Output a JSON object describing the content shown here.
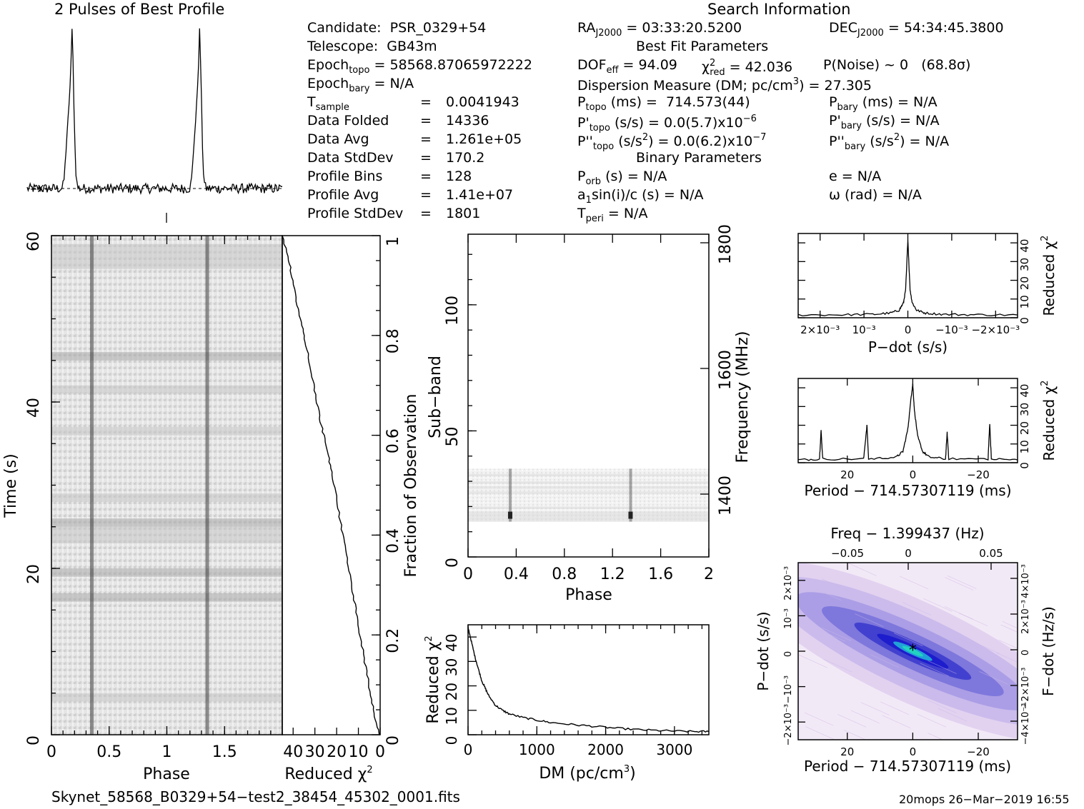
{
  "profile_title": "2 Pulses of Best Profile",
  "search_title": "Search Information",
  "candidate": {
    "label": "Candidate:",
    "value": "PSR_0329+54"
  },
  "telescope": {
    "label": "Telescope:",
    "value": "GB43m"
  },
  "epoch_topo": {
    "label": "Epoch",
    "sub": "topo",
    "value": "= 58568.87065972222"
  },
  "epoch_bary": {
    "label": "Epoch",
    "sub": "bary",
    "value": "= N/A"
  },
  "stats": [
    {
      "label": "T",
      "sub": "sample",
      "eq": "=",
      "value": "0.0041943"
    },
    {
      "label": "Data Folded",
      "sub": "",
      "eq": "=",
      "value": "14336"
    },
    {
      "label": "Data Avg",
      "sub": "",
      "eq": "=",
      "value": "1.261e+05"
    },
    {
      "label": "Data StdDev",
      "sub": "",
      "eq": "=",
      "value": "170.2"
    },
    {
      "label": "Profile Bins",
      "sub": "",
      "eq": "=",
      "value": "128"
    },
    {
      "label": "Profile Avg",
      "sub": "",
      "eq": "=",
      "value": "1.41e+07"
    },
    {
      "label": "Profile StdDev",
      "sub": "",
      "eq": "=",
      "value": "1801"
    }
  ],
  "ra": {
    "label": "RA",
    "sub": "J2000",
    "value": " = 03:33:20.5200"
  },
  "dec": {
    "label": "DEC",
    "sub": "J2000",
    "value": " = 54:34:45.3800"
  },
  "best_fit_title": "Best Fit Parameters",
  "dof": {
    "label": "DOF",
    "sub": "eff",
    "value": " = 94.09"
  },
  "chi": {
    "label": "χ",
    "sup": "2",
    "sub": "red",
    "value": " = 42.036"
  },
  "pnoise": "P(Noise) ~ 0   (68.8σ)",
  "dm_line": {
    "text": "Dispersion Measure (DM; pc/cm",
    "sup": "3",
    "tail": ") = 27.305"
  },
  "ptopo": {
    "label": "P",
    "sub": "topo",
    "value": " (ms) =  714.573(44)"
  },
  "pbary": {
    "label": "P",
    "sub": "bary",
    "value": " (ms) = N/A"
  },
  "pdtopo": {
    "label": "P'",
    "sub": "topo",
    "value": " (s/s) = 0.0(5.7)x10",
    "sup": "−6"
  },
  "pdbary": {
    "label": "P'",
    "sub": "bary",
    "value": " (s/s) = N/A"
  },
  "pddtopo": {
    "label": "P''",
    "sub": "topo",
    "value": " (s/s",
    "sup": "2",
    "tail": ") = 0.0(6.2)x10",
    "sup2": "−7"
  },
  "pddbary": {
    "label": "P''",
    "sub": "bary",
    "value": " (s/s",
    "sup": "2",
    "tail": ") = N/A"
  },
  "binary_title": "Binary Parameters",
  "porb": {
    "label": "P",
    "sub": "orb",
    "value": " (s) = N/A"
  },
  "ecc": "e = N/A",
  "a1": {
    "label": "a",
    "sub": "1",
    "value": "sin(i)/c (s) = N/A"
  },
  "omega": "ω (rad) = N/A",
  "tperi": {
    "label": "T",
    "sub": "peri",
    "value": " = N/A"
  },
  "footer_file": "Skynet_58568_B0329+54−test2_38454_45302_0001.fits",
  "footer_stamp": "20mops 26−Mar−2019 16:55",
  "colors": {
    "ink": "#000000",
    "pdot_low": "#ffffff",
    "pdot_mid": "#b4b4ee",
    "pdot_high": "#1a1acc",
    "pdot_peak": "#22d3c0"
  },
  "chart_data": [
    {
      "id": "profile",
      "type": "line",
      "title": "2 Pulses of Best Profile",
      "x": "phase 0–2",
      "peaks_at_phase": [
        0.35,
        1.35
      ],
      "baseline_marker": "−X−"
    },
    {
      "id": "time_phase",
      "type": "heatmap",
      "xlabel": "Phase",
      "ylabel": "Time (s)",
      "xlim": [
        0,
        2
      ],
      "ylim": [
        0,
        60
      ],
      "xticks": [
        "0",
        "0.5",
        "1",
        "1.5"
      ],
      "yticks": [
        "0",
        "20",
        "40",
        "60"
      ],
      "pulse_phase": [
        0.35,
        1.35
      ]
    },
    {
      "id": "chi_vs_time",
      "type": "line",
      "xlabel": "Reduced χ",
      "xlabel_sup": "2",
      "ylabel": "Fraction of Observation",
      "xlim": [
        45,
        0
      ],
      "ylim": [
        0,
        1
      ],
      "xticks": [
        "40",
        "30",
        "20",
        "10",
        "0"
      ],
      "yticks": [
        "0",
        "0.2",
        "0.4",
        "0.6",
        "0.8",
        "1"
      ],
      "x": [
        0,
        2,
        4,
        6,
        8,
        10,
        12,
        14,
        16,
        18,
        20,
        22,
        24,
        26,
        28,
        30,
        32,
        34,
        36,
        38,
        40,
        42,
        45
      ],
      "y": [
        0,
        0.03,
        0.07,
        0.12,
        0.17,
        0.22,
        0.27,
        0.32,
        0.37,
        0.42,
        0.47,
        0.52,
        0.56,
        0.6,
        0.64,
        0.69,
        0.73,
        0.78,
        0.82,
        0.86,
        0.91,
        0.95,
        1.0
      ]
    },
    {
      "id": "subband",
      "type": "heatmap",
      "xlabel": "Phase",
      "ylabel": "Sub−band",
      "ylabel_right": "Frequency (MHz)",
      "xlim": [
        0,
        2
      ],
      "ylim": [
        0,
        128
      ],
      "xticks": [
        "0",
        "0.4",
        "0.8",
        "1.2",
        "1.6",
        "2"
      ],
      "yticks": [
        "0",
        "50",
        "100"
      ],
      "right_ticks": [
        "1400",
        "1600",
        "1800"
      ],
      "data_subband_range": [
        14,
        35
      ],
      "pulse_phase": [
        0.35,
        1.35
      ]
    },
    {
      "id": "dm_curve",
      "type": "line",
      "xlabel": "DM (pc/cm",
      "xlabel_sup": "3",
      "ylabel": "Reduced χ",
      "ylabel_sup": "2",
      "xlim": [
        0,
        3500
      ],
      "ylim": [
        0,
        45
      ],
      "xticks": [
        "0",
        "1000",
        "2000",
        "3000"
      ],
      "yticks": [
        "0",
        "10",
        "20",
        "30",
        "40"
      ],
      "x": [
        0,
        50,
        100,
        150,
        200,
        250,
        300,
        400,
        500,
        600,
        800,
        1000,
        1200,
        1500,
        1800,
        2100,
        2400,
        2700,
        3000,
        3300,
        3500
      ],
      "y": [
        44,
        38,
        32,
        27,
        22,
        19,
        16,
        12,
        10,
        8.5,
        7,
        6,
        5,
        4.2,
        3.5,
        2.8,
        2.2,
        1.8,
        1.5,
        1.3,
        1.3
      ]
    },
    {
      "id": "pdot_curve",
      "type": "line",
      "xlabel": "P−dot (s/s)",
      "ylabel": "Reduced χ",
      "ylabel_sup": "2",
      "xlim": [
        0.0025,
        -0.0025
      ],
      "ylim": [
        0,
        45
      ],
      "xticks": [
        "2×10⁻³",
        "10⁻³",
        "0",
        "−10⁻³",
        "−2×10⁻³"
      ],
      "yticks": [
        "0",
        "10",
        "20",
        "30",
        "40"
      ],
      "x": [
        0.0025,
        0.0015,
        0.0008,
        0.0004,
        0.0002,
        0.0001,
        5e-05,
        0,
        -5e-05,
        -0.0001,
        -0.0002,
        -0.0004,
        -0.0008,
        -0.0015,
        -0.0025
      ],
      "y": [
        1.5,
        1.6,
        1.8,
        2.5,
        4,
        8,
        15,
        42,
        15,
        8,
        4,
        2.5,
        1.8,
        1.6,
        1.5
      ]
    },
    {
      "id": "period_curve",
      "type": "line",
      "xlabel": "Period − 714.57307119 (ms)",
      "ylabel": "Reduced χ",
      "ylabel_sup": "2",
      "xlim": [
        35,
        -32
      ],
      "ylim": [
        0,
        45
      ],
      "xticks": [
        "20",
        "0",
        "−20"
      ],
      "yticks": [
        "0",
        "10",
        "20",
        "30",
        "40"
      ],
      "x": [
        35,
        28.5,
        28,
        27.5,
        15,
        14,
        13.5,
        5,
        3,
        1.5,
        0.5,
        0,
        -0.5,
        -1.5,
        -3,
        -5,
        -10,
        -10.5,
        -11,
        -23,
        -23.5,
        -24,
        -32
      ],
      "y": [
        1.5,
        2,
        17,
        2,
        2,
        20,
        2,
        3,
        6,
        18,
        35,
        42,
        28,
        14,
        6,
        3,
        2,
        16,
        2,
        2,
        21,
        2,
        1.5
      ]
    },
    {
      "id": "p_pdot_plane",
      "type": "heatmap",
      "title_top": "Freq − 1.399437 (Hz)",
      "xlabel": "Period − 714.57307119 (ms)",
      "ylabel": "P−dot (s/s)",
      "ylabel_right": "F−dot (Hz/s)",
      "xlim": [
        35,
        -32
      ],
      "ylim": [
        0.0025,
        -0.0025
      ],
      "xticks": [
        "20",
        "0",
        "−20"
      ],
      "top_ticks": [
        "−0.05",
        "0",
        "0.05"
      ],
      "left_ticks": [
        "2×10⁻³",
        "10⁻³",
        "0",
        "−10⁻³",
        "−2×10⁻³"
      ],
      "right_ticks": [
        "−4×10⁻³",
        "−2×10⁻³",
        "0",
        "2×10⁻³",
        "4×10⁻³"
      ],
      "best": {
        "x": 0,
        "y": 0
      }
    }
  ]
}
